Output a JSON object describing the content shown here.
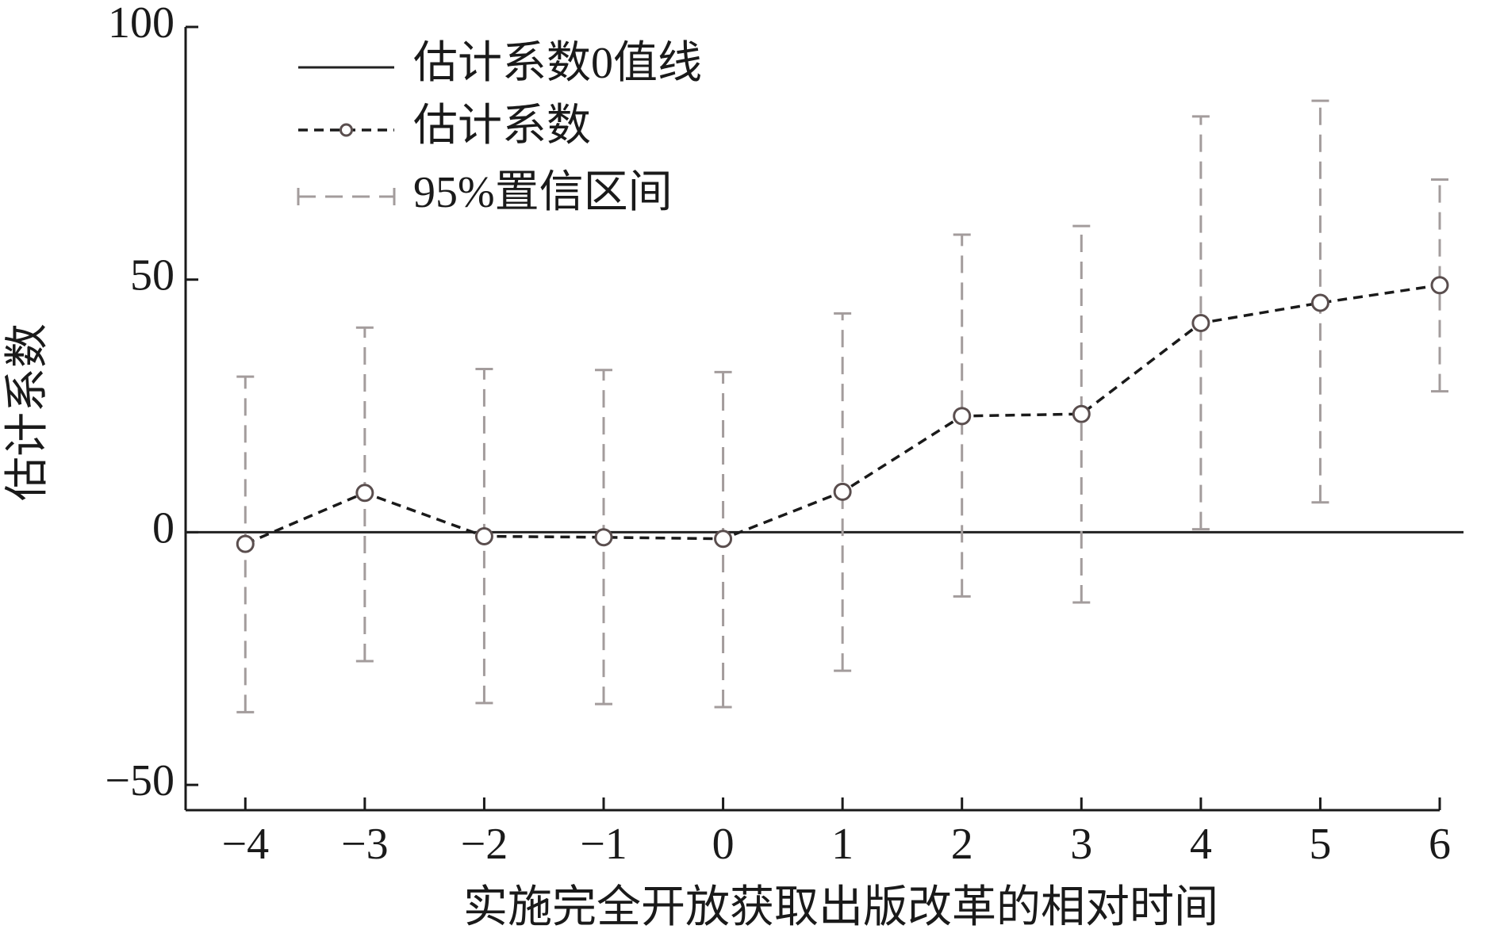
{
  "chart_data": {
    "type": "errorbar_line",
    "x_label": "实施完全开放获取出版改革的相对时间",
    "y_label": "估计系数",
    "x": [
      -4,
      -3,
      -2,
      -1,
      0,
      1,
      2,
      3,
      4,
      5,
      6
    ],
    "reference_line": {
      "name": "估计系数0值线",
      "value": 0,
      "color": "#222222"
    },
    "series": [
      {
        "name": "估计系数",
        "color": "#1a1a1a",
        "marker_color": "#5a4e4e",
        "values": [
          -2.3,
          7.8,
          -0.8,
          -1.0,
          -1.3,
          8.0,
          23.0,
          23.4,
          41.4,
          45.4,
          48.9
        ]
      },
      {
        "name": "95%置信区间",
        "color": "#a39c9c",
        "ci_low": [
          -35.6,
          -25.5,
          -33.8,
          -34.0,
          -34.6,
          -27.4,
          -12.7,
          -13.9,
          0.6,
          5.9,
          27.9
        ],
        "ci_high": [
          30.8,
          40.5,
          32.3,
          32.1,
          31.7,
          43.3,
          58.9,
          60.6,
          82.3,
          85.4,
          69.8
        ]
      }
    ],
    "xlim": [
      -4.5,
      6
    ],
    "ylim": [
      -55,
      100
    ],
    "xticks": [
      {
        "value": -4,
        "label": "−4"
      },
      {
        "value": -3,
        "label": "−3"
      },
      {
        "value": -2,
        "label": "−2"
      },
      {
        "value": -1,
        "label": "−1"
      },
      0,
      1,
      2,
      3,
      4,
      5,
      6
    ],
    "yticks": [
      {
        "value": -50,
        "label": "−50"
      },
      0,
      50,
      100
    ],
    "legend": "upper left"
  }
}
